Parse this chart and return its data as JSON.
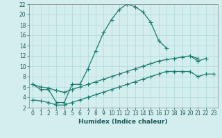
{
  "xlabel": "Humidex (Indice chaleur)",
  "bg_color": "#d4eeee",
  "grid_color": "#add8d8",
  "line_color": "#1a7a6e",
  "xlim": [
    -0.5,
    23.5
  ],
  "ylim": [
    2,
    22
  ],
  "xtick_labels": [
    "0",
    "1",
    "2",
    "3",
    "4",
    "5",
    "6",
    "7",
    "8",
    "9",
    "10",
    "11",
    "12",
    "13",
    "14",
    "15",
    "16",
    "17",
    "18",
    "19",
    "20",
    "21",
    "22",
    "23"
  ],
  "xtick_vals": [
    0,
    1,
    2,
    3,
    4,
    5,
    6,
    7,
    8,
    9,
    10,
    11,
    12,
    13,
    14,
    15,
    16,
    17,
    18,
    19,
    20,
    21,
    22,
    23
  ],
  "ytick_vals": [
    2,
    4,
    6,
    8,
    10,
    12,
    14,
    16,
    18,
    20,
    22
  ],
  "line1_x": [
    0,
    1,
    2,
    3,
    4,
    5,
    6,
    7,
    8,
    9,
    10,
    11,
    12,
    13,
    14,
    15,
    16,
    17,
    18,
    20,
    21,
    22
  ],
  "line1_y": [
    6.5,
    5.5,
    5.5,
    3.0,
    3.0,
    6.5,
    6.5,
    9.5,
    13.0,
    16.5,
    19.0,
    21.0,
    22.0,
    21.5,
    20.5,
    18.5,
    15.0,
    13.5,
    null,
    12.0,
    11.0,
    11.5
  ],
  "line2_x": [
    0,
    1,
    2,
    3,
    4,
    5,
    6,
    7,
    8,
    9,
    10,
    11,
    12,
    13,
    14,
    15,
    16,
    17,
    18,
    19,
    20,
    21
  ],
  "line2_y": [
    6.5,
    6.0,
    5.8,
    5.3,
    5.0,
    5.5,
    6.0,
    6.5,
    7.0,
    7.5,
    8.0,
    8.5,
    9.0,
    9.5,
    10.0,
    10.5,
    11.0,
    11.3,
    11.5,
    11.8,
    12.0,
    11.5
  ],
  "line3_x": [
    0,
    1,
    2,
    3,
    4,
    5,
    6,
    7,
    8,
    9,
    10,
    11,
    12,
    13,
    14,
    15,
    16,
    17,
    18,
    19,
    20,
    21,
    22,
    23
  ],
  "line3_y": [
    3.5,
    3.3,
    3.0,
    2.5,
    2.5,
    3.0,
    3.5,
    4.0,
    4.5,
    5.0,
    5.5,
    6.0,
    6.5,
    7.0,
    7.5,
    8.0,
    8.5,
    9.0,
    9.0,
    9.0,
    9.0,
    8.0,
    8.5,
    8.5
  ],
  "marker": "+",
  "markersize": 4,
  "linewidth": 0.9,
  "tick_fontsize": 5.5,
  "xlabel_fontsize": 6.5
}
